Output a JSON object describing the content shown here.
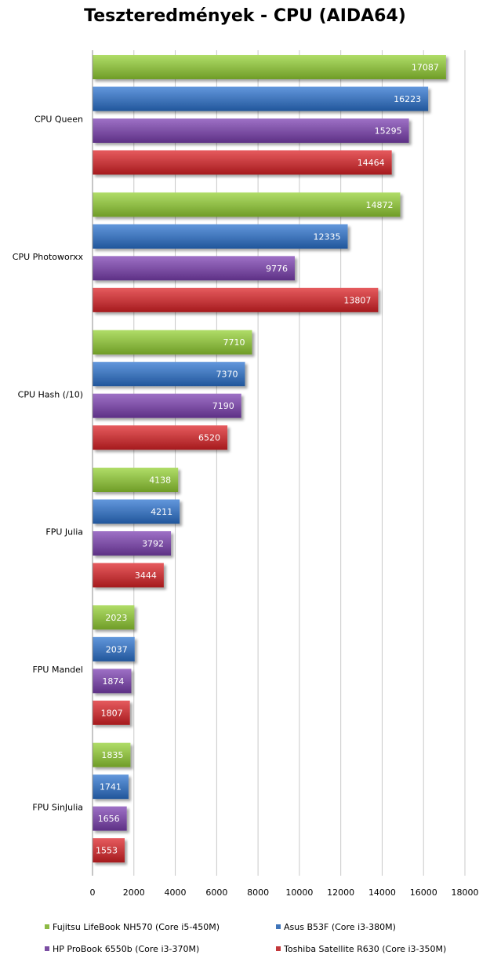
{
  "chart_data": {
    "type": "bar",
    "orientation": "horizontal",
    "title": "Teszteredmények - CPU (AIDA64)",
    "xlabel": "",
    "ylabel": "",
    "xlim": [
      0,
      18000
    ],
    "xticks": [
      0,
      2000,
      4000,
      6000,
      8000,
      10000,
      12000,
      14000,
      16000,
      18000
    ],
    "grid": true,
    "legend_position": "bottom",
    "data_labels": true,
    "categories": [
      "CPU Queen",
      "CPU Photoworxx",
      "CPU Hash (/10)",
      "FPU Julia",
      "FPU Mandel",
      "FPU SinJulia"
    ],
    "series": [
      {
        "name": "Fujitsu LifeBook NH570 (Core i5-450M)",
        "color": "#8dba45",
        "values": [
          17087,
          14872,
          7710,
          4138,
          2023,
          1835
        ]
      },
      {
        "name": "Asus B53F (Core i3-380M)",
        "color": "#3f74b9",
        "values": [
          16223,
          12335,
          7370,
          4211,
          2037,
          1741
        ]
      },
      {
        "name": "HP ProBook 6550b (Core i3-370M)",
        "color": "#7b4ea3",
        "values": [
          15295,
          9776,
          7190,
          3792,
          1874,
          1656
        ]
      },
      {
        "name": "Toshiba Satellite R630 (Core i3-350M)",
        "color": "#c3383b",
        "values": [
          14464,
          13807,
          6520,
          3444,
          1807,
          1553
        ]
      }
    ]
  }
}
